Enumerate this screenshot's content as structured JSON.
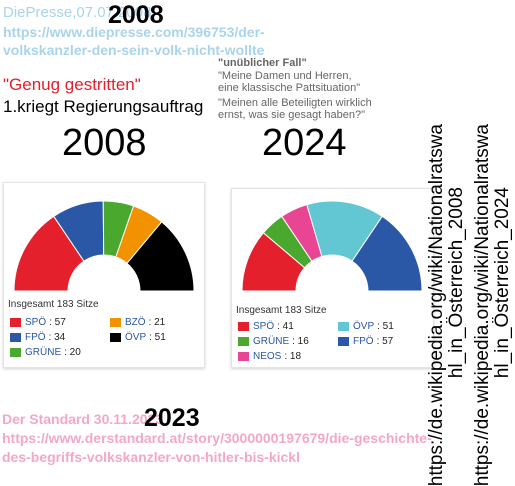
{
  "top_source": {
    "line1": "DiePresse,07.07.2008",
    "year_overlay": "2008",
    "url_line1": "https://www.diepresse.com/396753/der-",
    "url_line2": "volkskanzler-den-sein-volk-nicht-wollte"
  },
  "headline": {
    "red": "\"Genug gestritten\"",
    "black": "1.kriegt Regierungsauftrag"
  },
  "quote": {
    "title": "\"unüblicher Fall\"",
    "line1": "\"Meine Damen und Herren,",
    "line2": "eine klassische Pattsituation\"",
    "line3": "\"Meinen alle Beteiligten wirklich",
    "line4": "ernst, was sie gesagt haben?\""
  },
  "big_years": {
    "left": "2008",
    "right": "2024"
  },
  "chart_2008": {
    "total": "Insgesamt 183 Sitze",
    "parties": [
      {
        "name": "SPÖ",
        "value": ": 57",
        "color": "#e3202b"
      },
      {
        "name": "FPÖ",
        "value": ": 34",
        "color": "#2a57a6"
      },
      {
        "name": "GRÜNE",
        "value": ": 20",
        "color": "#4aa82f"
      },
      {
        "name": "BZÖ",
        "value": ": 21",
        "color": "#f39200"
      },
      {
        "name": "ÖVP",
        "value": ": 51",
        "color": "#000000"
      }
    ]
  },
  "chart_2024": {
    "total": "Insgesamt 183 Sitze",
    "parties": [
      {
        "name": "SPÖ",
        "value": ": 41",
        "color": "#e3202b"
      },
      {
        "name": "GRÜNE",
        "value": ": 16",
        "color": "#4aa82f"
      },
      {
        "name": "NEOS",
        "value": ": 18",
        "color": "#e84595"
      },
      {
        "name": "ÖVP",
        "value": ": 51",
        "color": "#63c6d3"
      },
      {
        "name": "FPÖ",
        "value": ": 57",
        "color": "#2a57a6"
      }
    ]
  },
  "chart_data": [
    {
      "type": "pie",
      "categories": [
        "SPÖ",
        "FPÖ",
        "GRÜNE",
        "BZÖ",
        "ÖVP"
      ],
      "values": [
        57,
        34,
        20,
        21,
        51
      ],
      "colors": [
        "#e3202b",
        "#2a57a6",
        "#4aa82f",
        "#f39200",
        "#000000"
      ]
    },
    {
      "type": "pie",
      "categories": [
        "SPÖ",
        "GRÜNE",
        "NEOS",
        "ÖVP",
        "FPÖ"
      ],
      "values": [
        41,
        16,
        18,
        51,
        57
      ],
      "colors": [
        "#e3202b",
        "#4aa82f",
        "#e84595",
        "#63c6d3",
        "#2a57a6"
      ]
    }
  ],
  "wiki_links": {
    "link1_line1": "https://de.wikipedia.org/wiki/Nationalratswa",
    "link1_line2": "hl_in_Österreich_2008",
    "link2_line1": "https://de.wikipedia.org/wiki/Nationalratswa",
    "link2_line2": "hl_in_Österreich_2024"
  },
  "bottom_source": {
    "line1": "Der Standard 30.11.2023",
    "year_overlay": "2023",
    "url_line1": "https://www.derstandard.at/story/3000000197679/die-geschichte-",
    "url_line2": "des-begriffs-volkskanzler-von-hitler-bis-kickl"
  }
}
